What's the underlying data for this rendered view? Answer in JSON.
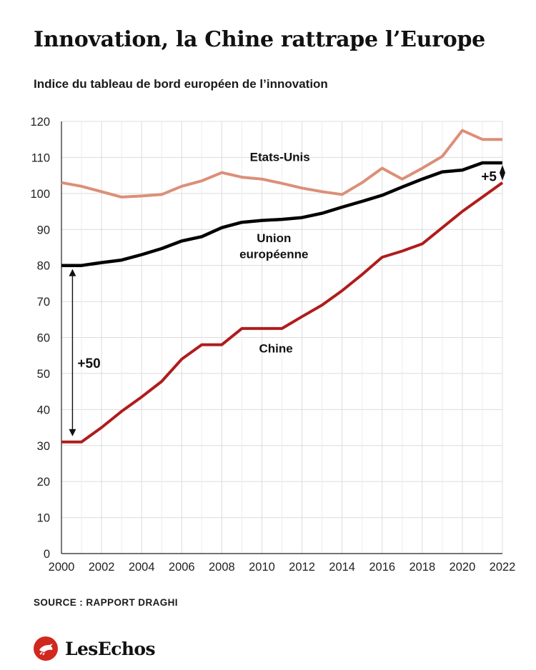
{
  "page": {
    "title": "Innovation, la Chine rattrape l’Europe",
    "subtitle": "Indice du tableau de bord européen de l’innovation",
    "source": "SOURCE : RAPPORT DRAGHI",
    "brand": "LesEchos",
    "brand_icon": "les-echos-bird-icon"
  },
  "chart_data": {
    "type": "line",
    "title": "Innovation, la Chine rattrape l’Europe",
    "subtitle": "Indice du tableau de bord européen de l’innovation",
    "xlabel": "",
    "ylabel": "",
    "xlim": [
      2000,
      2022
    ],
    "ylim": [
      0,
      120
    ],
    "grid": true,
    "x_ticks": [
      "2000",
      "2002",
      "2004",
      "2006",
      "2008",
      "2010",
      "2012",
      "2014",
      "2016",
      "2018",
      "2020",
      "2022"
    ],
    "y_ticks": [
      "0",
      "10",
      "20",
      "30",
      "40",
      "50",
      "60",
      "70",
      "80",
      "90",
      "100",
      "110",
      "120"
    ],
    "x": [
      2000,
      2001,
      2002,
      2003,
      2004,
      2005,
      2006,
      2007,
      2008,
      2009,
      2010,
      2011,
      2012,
      2013,
      2014,
      2015,
      2016,
      2017,
      2018,
      2019,
      2020,
      2021,
      2022
    ],
    "series": [
      {
        "name": "Etats-Unis",
        "color": "#dc8f78",
        "values": [
          103,
          102,
          100.5,
          99,
          99.3,
          99.7,
          102,
          103.5,
          105.8,
          104.5,
          104,
          102.8,
          101.5,
          100.5,
          99.7,
          103,
          107,
          104,
          107,
          110.3,
          117.5,
          115,
          115
        ]
      },
      {
        "name": "Union européenne",
        "color": "#000000",
        "values": [
          80,
          80,
          80.8,
          81.5,
          83,
          84.7,
          86.8,
          88,
          90.5,
          92,
          92.5,
          92.8,
          93.3,
          94.5,
          96.2,
          97.8,
          99.5,
          101.8,
          104,
          106,
          106.5,
          108.5,
          108.5
        ]
      },
      {
        "name": "Chine",
        "color": "#b01c1c",
        "values": [
          31,
          31,
          35,
          39.5,
          43.5,
          47.8,
          54,
          58,
          58,
          62.5,
          62.5,
          62.5,
          65.8,
          69,
          73,
          77.5,
          82.3,
          84,
          86,
          90.5,
          95,
          99,
          103
        ]
      }
    ],
    "series_labels": [
      {
        "text": "Etats-Unis",
        "x": 2010.9,
        "y": 109
      },
      {
        "text": "Union",
        "x": 2010.6,
        "y": 86.5
      },
      {
        "text": "européenne",
        "x": 2010.6,
        "y": 82
      },
      {
        "text": "Chine",
        "x": 2010.7,
        "y": 55.8
      }
    ],
    "annotations": [
      {
        "text": "+50",
        "x_from": 2000.55,
        "y_from": 80,
        "y_to": 31,
        "label_y": 53
      },
      {
        "text": "+5",
        "x_from": 2022,
        "y_from": 108.5,
        "y_to": 103,
        "label_y": 104.8
      }
    ]
  }
}
